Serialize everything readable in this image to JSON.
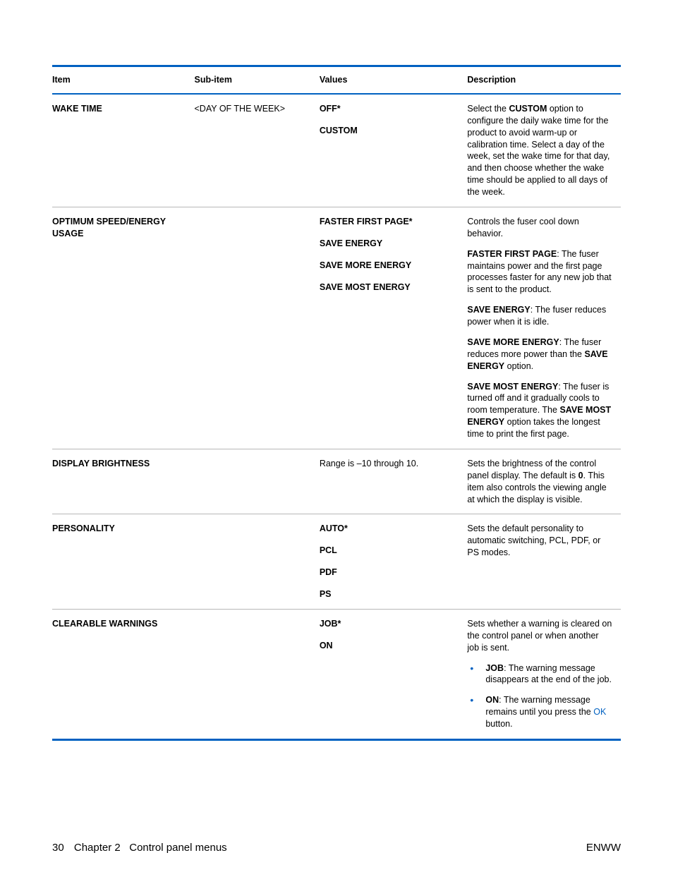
{
  "colors": {
    "accent": "#0061c1",
    "rule": "#b7b7b7",
    "text": "#000000",
    "background": "#ffffff"
  },
  "table": {
    "headers": {
      "item": "Item",
      "sub": "Sub-item",
      "values": "Values",
      "desc": "Description"
    },
    "rows": {
      "wake": {
        "item": "WAKE TIME",
        "sub": "<DAY OF THE WEEK>",
        "v1": "OFF*",
        "v2": "CUSTOM",
        "desc_pre": "Select the ",
        "desc_bold": "CUSTOM",
        "desc_post": " option to configure the daily wake time for the product to avoid warm-up or calibration time. Select a day of the week, set the wake time for that day, and then choose whether the wake time should be applied to all days of the week."
      },
      "optimum": {
        "item": "OPTIMUM SPEED/ENERGY USAGE",
        "v1": "FASTER FIRST PAGE*",
        "v2": "SAVE ENERGY",
        "v3": "SAVE MORE ENERGY",
        "v4": "SAVE MOST ENERGY",
        "p1": "Controls the fuser cool down behavior.",
        "p2_b": "FASTER FIRST PAGE",
        "p2_t": ": The fuser maintains power and the first page processes faster for any new job that is sent to the product.",
        "p3_b": "SAVE ENERGY",
        "p3_t": ": The fuser reduces power when it is idle.",
        "p4_b": "SAVE MORE ENERGY",
        "p4_t1": ": The fuser reduces more power than the ",
        "p4_b2": "SAVE ENERGY",
        "p4_t2": " option.",
        "p5_b": "SAVE MOST ENERGY",
        "p5_t1": ": The fuser is turned off and it gradually cools to room temperature. The ",
        "p5_b2": "SAVE MOST ENERGY",
        "p5_t2": " option takes the longest time to print the first page."
      },
      "brightness": {
        "item": "DISPLAY BRIGHTNESS",
        "values": "Range is –10 through 10.",
        "d_pre": "Sets the brightness of the control panel display. The default is ",
        "d_b": "0",
        "d_post": ". This item also controls the viewing angle at which the display is visible."
      },
      "personality": {
        "item": "PERSONALITY",
        "v1": "AUTO*",
        "v2": "PCL",
        "v3": "PDF",
        "v4": "PS",
        "desc": "Sets the default personality to automatic switching, PCL, PDF, or PS modes."
      },
      "clearable": {
        "item": "CLEARABLE WARNINGS",
        "v1": "JOB*",
        "v2": "ON",
        "p1": "Sets whether a warning is cleared on the control panel or when another job is sent.",
        "b1_b": "JOB",
        "b1_t": ": The warning message disappears at the end of the job.",
        "b2_b": "ON",
        "b2_t1": ": The warning message remains until you press the ",
        "b2_ok": "OK",
        "b2_t2": " button."
      }
    }
  },
  "footer": {
    "page": "30",
    "chapter_label": "Chapter 2",
    "chapter_title": "Control panel menus",
    "right": "ENWW"
  }
}
